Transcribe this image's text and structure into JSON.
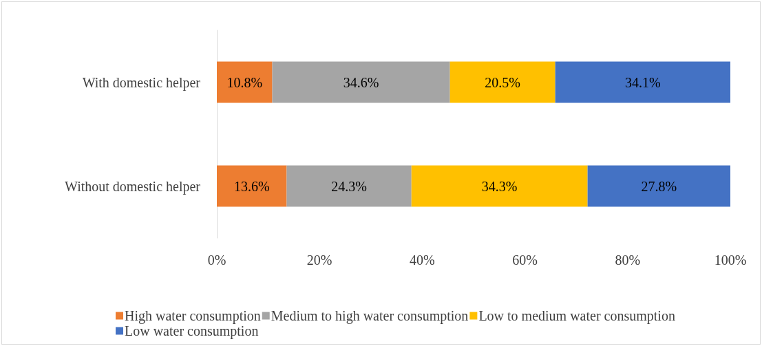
{
  "chart_data": {
    "type": "bar",
    "orientation": "horizontal",
    "stacked": true,
    "categories": [
      "With domestic helper",
      "Without domestic helper"
    ],
    "series": [
      {
        "name": "High water consumption",
        "color": "#ed7d31",
        "values": [
          10.8,
          13.6
        ],
        "value_labels": [
          "10.8%",
          "13.6%"
        ]
      },
      {
        "name": "Medium to high water consumption",
        "color": "#a5a5a5",
        "values": [
          34.6,
          24.3
        ],
        "value_labels": [
          "34.6%",
          "24.3%"
        ]
      },
      {
        "name": "Low to medium water consumption",
        "color": "#ffc000",
        "values": [
          20.5,
          34.3
        ],
        "value_labels": [
          "20.5%",
          "34.3%"
        ]
      },
      {
        "name": "Low water consumption",
        "color": "#4472c4",
        "values": [
          34.1,
          27.8
        ],
        "value_labels": [
          "34.1%",
          "27.8%"
        ]
      }
    ],
    "xlim": [
      0,
      100
    ],
    "xticks": [
      {
        "value": 0,
        "label": "0%"
      },
      {
        "value": 20,
        "label": "20%"
      },
      {
        "value": 40,
        "label": "40%"
      },
      {
        "value": 60,
        "label": "60%"
      },
      {
        "value": 80,
        "label": "80%"
      },
      {
        "value": 100,
        "label": "100%"
      }
    ],
    "grid": false,
    "legend": "bottom"
  }
}
